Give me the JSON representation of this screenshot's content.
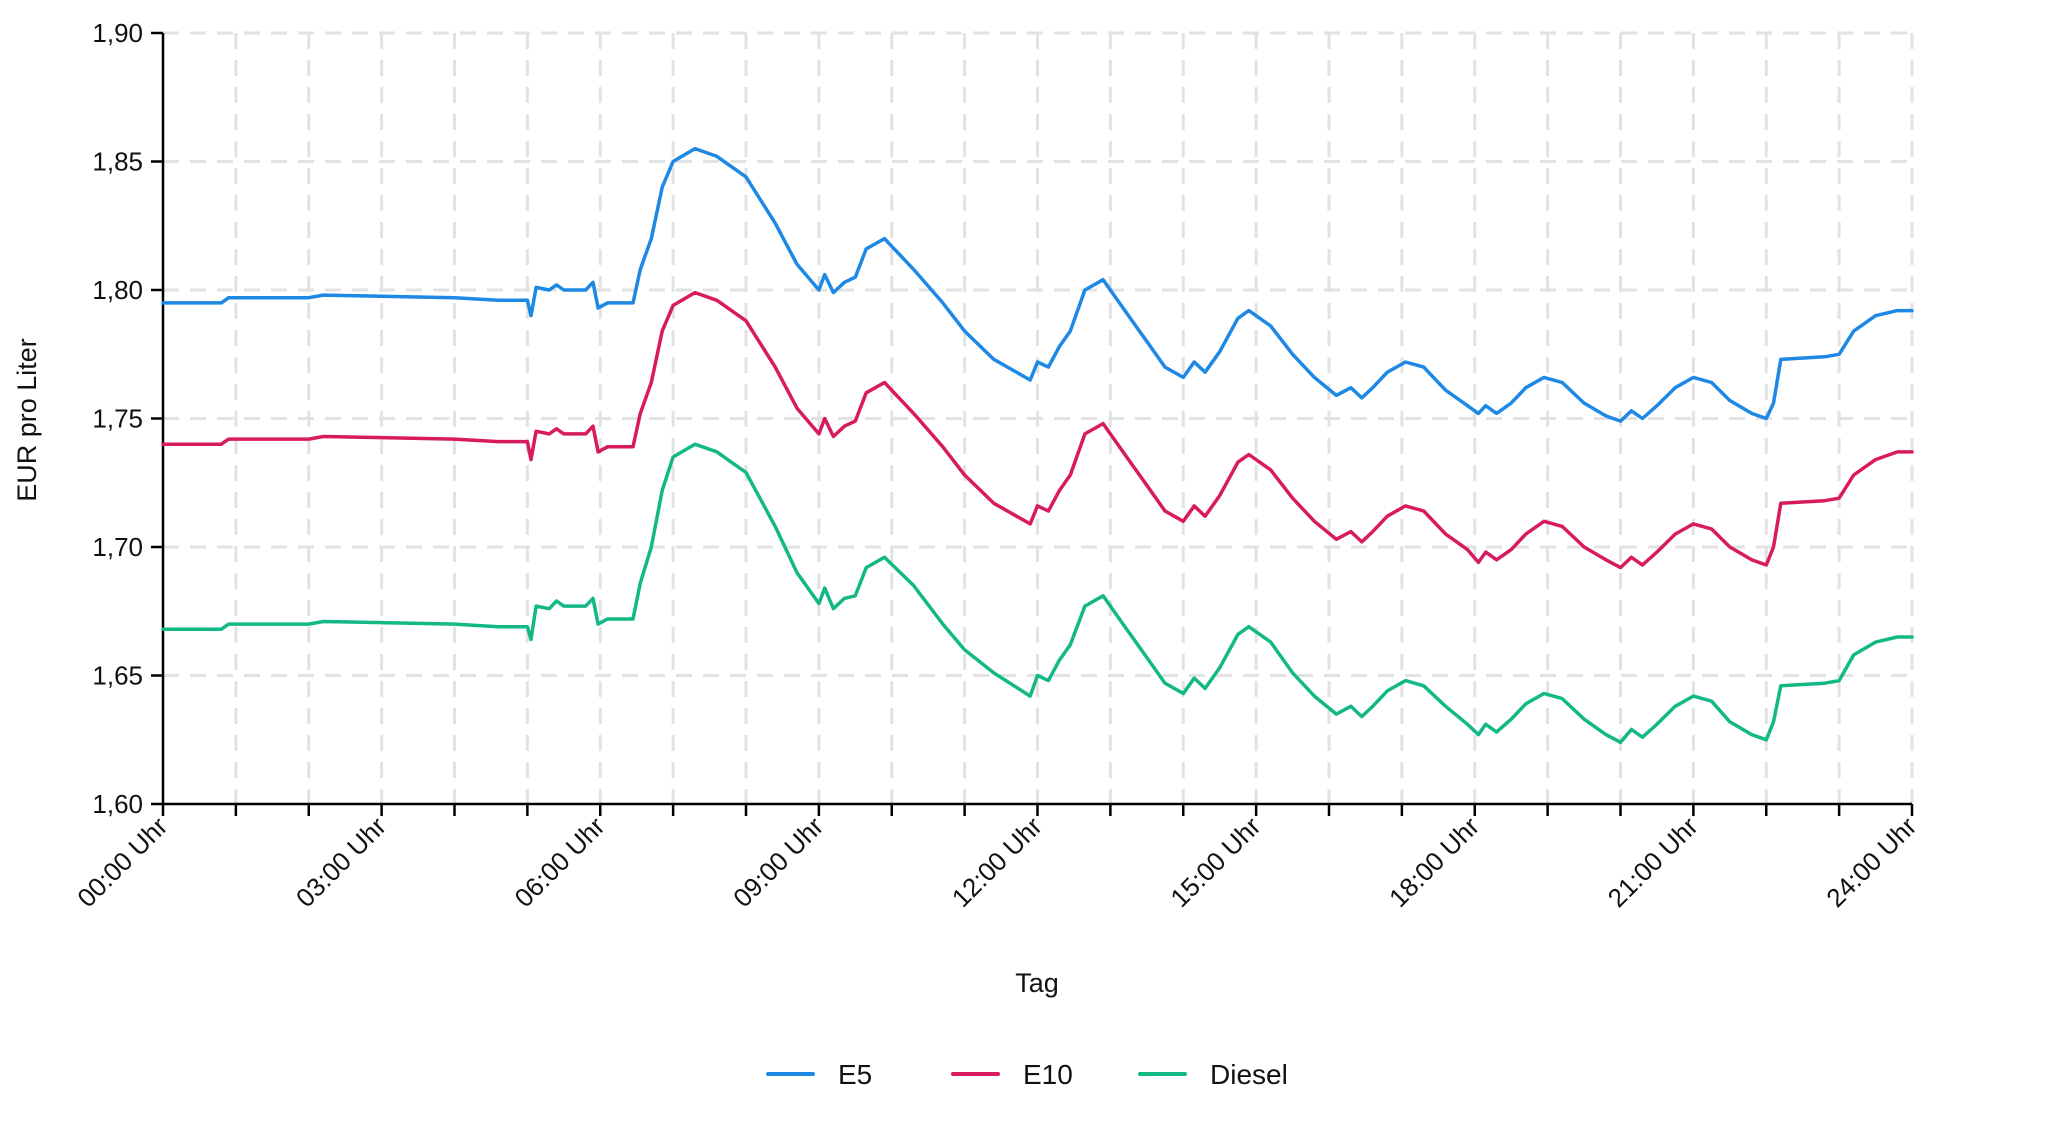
{
  "chart_data": {
    "type": "line",
    "title": "",
    "xlabel": "Tag",
    "ylabel": "EUR pro Liter",
    "x_unit": "hours",
    "xlim": [
      0,
      24
    ],
    "ylim": [
      1.6,
      1.9
    ],
    "y_ticks": [
      1.6,
      1.65,
      1.7,
      1.75,
      1.8,
      1.85,
      1.9
    ],
    "y_tick_labels": [
      "1,60",
      "1,65",
      "1,70",
      "1,75",
      "1,80",
      "1,85",
      "1,90"
    ],
    "x_ticks": [
      0,
      3,
      6,
      9,
      12,
      15,
      18,
      21,
      24
    ],
    "x_tick_labels": [
      "00:00 Uhr",
      "03:00 Uhr",
      "06:00 Uhr",
      "09:00 Uhr",
      "12:00 Uhr",
      "15:00 Uhr",
      "18:00 Uhr",
      "21:00 Uhr",
      "24:00 Uhr"
    ],
    "grid": true,
    "legend_position": "bottom",
    "series": [
      {
        "name": "E5",
        "color": "#1E88E5",
        "points": [
          [
            0,
            1.795
          ],
          [
            0.8,
            1.795
          ],
          [
            0.9,
            1.797
          ],
          [
            2,
            1.797
          ],
          [
            2.2,
            1.798
          ],
          [
            4,
            1.797
          ],
          [
            4.6,
            1.796
          ],
          [
            5.0,
            1.796
          ],
          [
            5.05,
            1.79
          ],
          [
            5.12,
            1.801
          ],
          [
            5.3,
            1.8
          ],
          [
            5.4,
            1.802
          ],
          [
            5.5,
            1.8
          ],
          [
            5.8,
            1.8
          ],
          [
            5.9,
            1.803
          ],
          [
            5.97,
            1.793
          ],
          [
            6.1,
            1.795
          ],
          [
            6.45,
            1.795
          ],
          [
            6.55,
            1.808
          ],
          [
            6.7,
            1.82
          ],
          [
            6.85,
            1.84
          ],
          [
            7.0,
            1.85
          ],
          [
            7.3,
            1.855
          ],
          [
            7.6,
            1.852
          ],
          [
            8.0,
            1.844
          ],
          [
            8.4,
            1.826
          ],
          [
            8.7,
            1.81
          ],
          [
            9.0,
            1.8
          ],
          [
            9.08,
            1.806
          ],
          [
            9.2,
            1.799
          ],
          [
            9.35,
            1.803
          ],
          [
            9.5,
            1.805
          ],
          [
            9.65,
            1.816
          ],
          [
            9.9,
            1.82
          ],
          [
            10.3,
            1.808
          ],
          [
            10.7,
            1.795
          ],
          [
            11.0,
            1.784
          ],
          [
            11.4,
            1.773
          ],
          [
            11.9,
            1.765
          ],
          [
            12.0,
            1.772
          ],
          [
            12.15,
            1.77
          ],
          [
            12.3,
            1.778
          ],
          [
            12.45,
            1.784
          ],
          [
            12.65,
            1.8
          ],
          [
            12.9,
            1.804
          ],
          [
            13.2,
            1.792
          ],
          [
            13.5,
            1.78
          ],
          [
            13.75,
            1.77
          ],
          [
            14.0,
            1.766
          ],
          [
            14.15,
            1.772
          ],
          [
            14.3,
            1.768
          ],
          [
            14.5,
            1.776
          ],
          [
            14.75,
            1.789
          ],
          [
            14.9,
            1.792
          ],
          [
            15.2,
            1.786
          ],
          [
            15.5,
            1.775
          ],
          [
            15.8,
            1.766
          ],
          [
            16.1,
            1.759
          ],
          [
            16.3,
            1.762
          ],
          [
            16.45,
            1.758
          ],
          [
            16.6,
            1.762
          ],
          [
            16.8,
            1.768
          ],
          [
            17.05,
            1.772
          ],
          [
            17.3,
            1.77
          ],
          [
            17.6,
            1.761
          ],
          [
            17.9,
            1.755
          ],
          [
            18.05,
            1.752
          ],
          [
            18.15,
            1.755
          ],
          [
            18.3,
            1.752
          ],
          [
            18.5,
            1.756
          ],
          [
            18.7,
            1.762
          ],
          [
            18.95,
            1.766
          ],
          [
            19.2,
            1.764
          ],
          [
            19.5,
            1.756
          ],
          [
            19.8,
            1.751
          ],
          [
            20.0,
            1.749
          ],
          [
            20.15,
            1.753
          ],
          [
            20.3,
            1.75
          ],
          [
            20.5,
            1.755
          ],
          [
            20.75,
            1.762
          ],
          [
            21.0,
            1.766
          ],
          [
            21.25,
            1.764
          ],
          [
            21.5,
            1.757
          ],
          [
            21.8,
            1.752
          ],
          [
            22.0,
            1.75
          ],
          [
            22.1,
            1.756
          ],
          [
            22.2,
            1.773
          ],
          [
            22.8,
            1.774
          ],
          [
            23.0,
            1.775
          ],
          [
            23.2,
            1.784
          ],
          [
            23.5,
            1.79
          ],
          [
            23.8,
            1.792
          ],
          [
            24.0,
            1.792
          ]
        ]
      },
      {
        "name": "E10",
        "color": "#D81B60",
        "points": [
          [
            0,
            1.74
          ],
          [
            0.8,
            1.74
          ],
          [
            0.9,
            1.742
          ],
          [
            2,
            1.742
          ],
          [
            2.2,
            1.743
          ],
          [
            4,
            1.742
          ],
          [
            4.6,
            1.741
          ],
          [
            5.0,
            1.741
          ],
          [
            5.05,
            1.734
          ],
          [
            5.12,
            1.745
          ],
          [
            5.3,
            1.744
          ],
          [
            5.4,
            1.746
          ],
          [
            5.5,
            1.744
          ],
          [
            5.8,
            1.744
          ],
          [
            5.9,
            1.747
          ],
          [
            5.97,
            1.737
          ],
          [
            6.1,
            1.739
          ],
          [
            6.45,
            1.739
          ],
          [
            6.55,
            1.752
          ],
          [
            6.7,
            1.764
          ],
          [
            6.85,
            1.784
          ],
          [
            7.0,
            1.794
          ],
          [
            7.3,
            1.799
          ],
          [
            7.6,
            1.796
          ],
          [
            8.0,
            1.788
          ],
          [
            8.4,
            1.77
          ],
          [
            8.7,
            1.754
          ],
          [
            9.0,
            1.744
          ],
          [
            9.08,
            1.75
          ],
          [
            9.2,
            1.743
          ],
          [
            9.35,
            1.747
          ],
          [
            9.5,
            1.749
          ],
          [
            9.65,
            1.76
          ],
          [
            9.9,
            1.764
          ],
          [
            10.3,
            1.752
          ],
          [
            10.7,
            1.739
          ],
          [
            11.0,
            1.728
          ],
          [
            11.4,
            1.717
          ],
          [
            11.9,
            1.709
          ],
          [
            12.0,
            1.716
          ],
          [
            12.15,
            1.714
          ],
          [
            12.3,
            1.722
          ],
          [
            12.45,
            1.728
          ],
          [
            12.65,
            1.744
          ],
          [
            12.9,
            1.748
          ],
          [
            13.2,
            1.736
          ],
          [
            13.5,
            1.724
          ],
          [
            13.75,
            1.714
          ],
          [
            14.0,
            1.71
          ],
          [
            14.15,
            1.716
          ],
          [
            14.3,
            1.712
          ],
          [
            14.5,
            1.72
          ],
          [
            14.75,
            1.733
          ],
          [
            14.9,
            1.736
          ],
          [
            15.2,
            1.73
          ],
          [
            15.5,
            1.719
          ],
          [
            15.8,
            1.71
          ],
          [
            16.1,
            1.703
          ],
          [
            16.3,
            1.706
          ],
          [
            16.45,
            1.702
          ],
          [
            16.6,
            1.706
          ],
          [
            16.8,
            1.712
          ],
          [
            17.05,
            1.716
          ],
          [
            17.3,
            1.714
          ],
          [
            17.6,
            1.705
          ],
          [
            17.9,
            1.699
          ],
          [
            18.05,
            1.694
          ],
          [
            18.15,
            1.698
          ],
          [
            18.3,
            1.695
          ],
          [
            18.5,
            1.699
          ],
          [
            18.7,
            1.705
          ],
          [
            18.95,
            1.71
          ],
          [
            19.2,
            1.708
          ],
          [
            19.5,
            1.7
          ],
          [
            19.8,
            1.695
          ],
          [
            20.0,
            1.692
          ],
          [
            20.15,
            1.696
          ],
          [
            20.3,
            1.693
          ],
          [
            20.5,
            1.698
          ],
          [
            20.75,
            1.705
          ],
          [
            21.0,
            1.709
          ],
          [
            21.25,
            1.707
          ],
          [
            21.5,
            1.7
          ],
          [
            21.8,
            1.695
          ],
          [
            22.0,
            1.693
          ],
          [
            22.1,
            1.7
          ],
          [
            22.2,
            1.717
          ],
          [
            22.8,
            1.718
          ],
          [
            23.0,
            1.719
          ],
          [
            23.2,
            1.728
          ],
          [
            23.5,
            1.734
          ],
          [
            23.8,
            1.737
          ],
          [
            24.0,
            1.737
          ]
        ]
      },
      {
        "name": "Diesel",
        "color": "#12B886",
        "points": [
          [
            0,
            1.668
          ],
          [
            0.8,
            1.668
          ],
          [
            0.9,
            1.67
          ],
          [
            2,
            1.67
          ],
          [
            2.2,
            1.671
          ],
          [
            4,
            1.67
          ],
          [
            4.6,
            1.669
          ],
          [
            5.0,
            1.669
          ],
          [
            5.05,
            1.664
          ],
          [
            5.12,
            1.677
          ],
          [
            5.3,
            1.676
          ],
          [
            5.4,
            1.679
          ],
          [
            5.5,
            1.677
          ],
          [
            5.8,
            1.677
          ],
          [
            5.9,
            1.68
          ],
          [
            5.97,
            1.67
          ],
          [
            6.1,
            1.672
          ],
          [
            6.45,
            1.672
          ],
          [
            6.55,
            1.686
          ],
          [
            6.7,
            1.7
          ],
          [
            6.85,
            1.722
          ],
          [
            7.0,
            1.735
          ],
          [
            7.3,
            1.74
          ],
          [
            7.6,
            1.737
          ],
          [
            8.0,
            1.729
          ],
          [
            8.4,
            1.708
          ],
          [
            8.7,
            1.69
          ],
          [
            9.0,
            1.678
          ],
          [
            9.08,
            1.684
          ],
          [
            9.2,
            1.676
          ],
          [
            9.35,
            1.68
          ],
          [
            9.5,
            1.681
          ],
          [
            9.65,
            1.692
          ],
          [
            9.9,
            1.696
          ],
          [
            10.3,
            1.685
          ],
          [
            10.7,
            1.67
          ],
          [
            11.0,
            1.66
          ],
          [
            11.4,
            1.651
          ],
          [
            11.9,
            1.642
          ],
          [
            12.0,
            1.65
          ],
          [
            12.15,
            1.648
          ],
          [
            12.3,
            1.656
          ],
          [
            12.45,
            1.662
          ],
          [
            12.65,
            1.677
          ],
          [
            12.9,
            1.681
          ],
          [
            13.2,
            1.669
          ],
          [
            13.5,
            1.657
          ],
          [
            13.75,
            1.647
          ],
          [
            14.0,
            1.643
          ],
          [
            14.15,
            1.649
          ],
          [
            14.3,
            1.645
          ],
          [
            14.5,
            1.653
          ],
          [
            14.75,
            1.666
          ],
          [
            14.9,
            1.669
          ],
          [
            15.2,
            1.663
          ],
          [
            15.5,
            1.651
          ],
          [
            15.8,
            1.642
          ],
          [
            16.1,
            1.635
          ],
          [
            16.3,
            1.638
          ],
          [
            16.45,
            1.634
          ],
          [
            16.6,
            1.638
          ],
          [
            16.8,
            1.644
          ],
          [
            17.05,
            1.648
          ],
          [
            17.3,
            1.646
          ],
          [
            17.6,
            1.638
          ],
          [
            17.9,
            1.631
          ],
          [
            18.05,
            1.627
          ],
          [
            18.15,
            1.631
          ],
          [
            18.3,
            1.628
          ],
          [
            18.5,
            1.633
          ],
          [
            18.7,
            1.639
          ],
          [
            18.95,
            1.643
          ],
          [
            19.2,
            1.641
          ],
          [
            19.5,
            1.633
          ],
          [
            19.8,
            1.627
          ],
          [
            20.0,
            1.624
          ],
          [
            20.15,
            1.629
          ],
          [
            20.3,
            1.626
          ],
          [
            20.5,
            1.631
          ],
          [
            20.75,
            1.638
          ],
          [
            21.0,
            1.642
          ],
          [
            21.25,
            1.64
          ],
          [
            21.5,
            1.632
          ],
          [
            21.8,
            1.627
          ],
          [
            22.0,
            1.625
          ],
          [
            22.1,
            1.632
          ],
          [
            22.2,
            1.646
          ],
          [
            22.8,
            1.647
          ],
          [
            23.0,
            1.648
          ],
          [
            23.2,
            1.658
          ],
          [
            23.5,
            1.663
          ],
          [
            23.8,
            1.665
          ],
          [
            24.0,
            1.665
          ]
        ]
      }
    ]
  }
}
